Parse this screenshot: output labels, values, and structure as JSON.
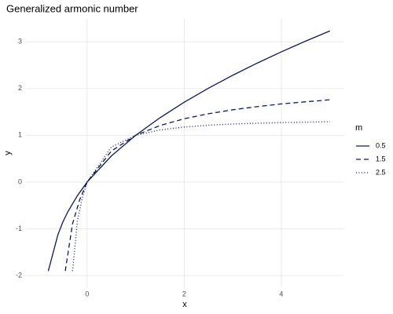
{
  "chart_data": {
    "type": "line",
    "title": "Generalized armonic number",
    "x_label": "x",
    "y_label": "y",
    "legend_title": "m",
    "xlim": [
      -1.26,
      5.28
    ],
    "xticks": [
      0,
      2,
      4
    ],
    "ylim": [
      -2.25,
      3.49
    ],
    "yticks": [
      -2,
      -1,
      0,
      1,
      2,
      3
    ],
    "grid": true,
    "series": [
      {
        "name": "0.5",
        "color": "#0b1a5e",
        "dash": "solid",
        "x": [
          -0.8,
          -0.6,
          -0.5,
          -0.4,
          -0.2,
          0,
          0.5,
          1,
          1.5,
          2,
          2.5,
          3,
          3.5,
          4,
          4.5,
          5
        ],
        "values": [
          -1.9,
          -1.12,
          -0.855,
          -0.64,
          -0.29,
          0,
          0.559,
          1,
          1.375,
          1.707,
          2.008,
          2.284,
          2.542,
          2.784,
          3.014,
          3.232
        ]
      },
      {
        "name": "1.5",
        "color": "#0b1a5e",
        "dash": "dashed",
        "x": [
          -0.45,
          -0.3,
          -0.15,
          0,
          0.5,
          1,
          1.5,
          2,
          2.5,
          3,
          3.5,
          4,
          4.5,
          5
        ],
        "values": [
          -1.9,
          -0.89,
          -0.37,
          0,
          0.664,
          1,
          1.208,
          1.354,
          1.461,
          1.546,
          1.613,
          1.671,
          1.716,
          1.76
        ]
      },
      {
        "name": "2.5",
        "color": "#0b1a5e",
        "dash": "dotted",
        "x": [
          -0.3,
          -0.2,
          -0.1,
          0,
          0.5,
          1,
          1.5,
          2,
          2.5,
          3,
          3.5,
          4,
          4.5,
          5
        ],
        "values": [
          -1.9,
          -0.83,
          -0.34,
          0,
          0.751,
          1,
          1.114,
          1.177,
          1.215,
          1.241,
          1.258,
          1.272,
          1.281,
          1.29
        ]
      }
    ]
  }
}
